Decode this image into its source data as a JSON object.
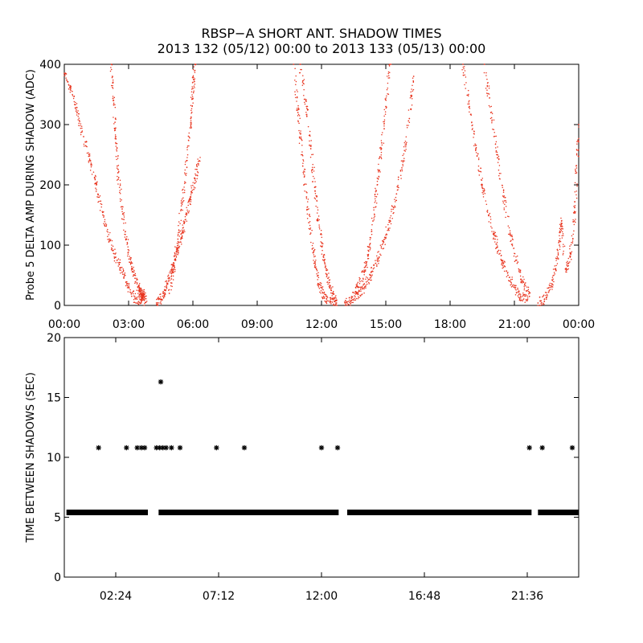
{
  "title_line1": "RBSP−A SHORT ANT. SHADOW TIMES",
  "title_line2": "2013 132 (05/12) 00:00 to 2013 133 (05/13) 00:00",
  "colors": {
    "top_points": "#e8321c",
    "bottom_points": "#000000",
    "axes": "#000000"
  },
  "chart_data": [
    {
      "type": "scatter",
      "name": "probe5-delta-amp",
      "ylabel": "Probe 5 DELTA AMP DURING SHADOW (ADC)",
      "xlabel": "",
      "x_unit": "hours",
      "xlim": [
        0,
        24
      ],
      "ylim": [
        0,
        400
      ],
      "x_ticks": [
        0,
        3,
        6,
        9,
        12,
        15,
        18,
        21,
        24
      ],
      "x_tick_labels": [
        "00:00",
        "03:00",
        "06:00",
        "09:00",
        "12:00",
        "15:00",
        "18:00",
        "21:00",
        "00:00"
      ],
      "y_ticks": [
        0,
        100,
        200,
        300,
        400
      ],
      "y_tick_labels": [
        "0",
        "100",
        "200",
        "300",
        "400"
      ],
      "grid": false,
      "series": [
        {
          "name": "descending-branch",
          "points": [
            [
              0.0,
              385
            ],
            [
              0.3,
              360
            ],
            [
              0.6,
              320
            ],
            [
              0.9,
              280
            ],
            [
              1.2,
              240
            ],
            [
              1.5,
              200
            ],
            [
              1.8,
              150
            ],
            [
              2.1,
              110
            ],
            [
              2.4,
              80
            ],
            [
              2.7,
              55
            ],
            [
              3.0,
              30
            ],
            [
              3.3,
              12
            ],
            [
              3.6,
              8
            ],
            [
              3.7,
              20
            ],
            [
              3.8,
              5
            ]
          ]
        },
        {
          "name": "descending-branch-2",
          "points": [
            [
              2.2,
              400
            ],
            [
              2.3,
              340
            ],
            [
              2.4,
              280
            ],
            [
              2.5,
              220
            ],
            [
              2.7,
              160
            ],
            [
              2.9,
              110
            ],
            [
              3.1,
              70
            ],
            [
              3.3,
              45
            ],
            [
              3.5,
              25
            ],
            [
              3.6,
              20
            ],
            [
              3.7,
              15
            ]
          ]
        },
        {
          "name": "ascending-branch",
          "points": [
            [
              4.3,
              4
            ],
            [
              4.5,
              10
            ],
            [
              4.7,
              25
            ],
            [
              4.9,
              45
            ],
            [
              5.1,
              70
            ],
            [
              5.3,
              95
            ],
            [
              5.5,
              120
            ],
            [
              5.7,
              150
            ],
            [
              5.9,
              180
            ],
            [
              6.1,
              210
            ],
            [
              6.3,
              240
            ]
          ]
        },
        {
          "name": "ascending-branch-2",
          "points": [
            [
              4.9,
              20
            ],
            [
              5.1,
              60
            ],
            [
              5.3,
              110
            ],
            [
              5.5,
              170
            ],
            [
              5.7,
              240
            ],
            [
              5.9,
              310
            ],
            [
              6.0,
              360
            ],
            [
              6.1,
              400
            ]
          ]
        },
        {
          "name": "descending-branch-3",
          "points": [
            [
              10.7,
              400
            ],
            [
              10.9,
              320
            ],
            [
              11.1,
              250
            ],
            [
              11.3,
              180
            ],
            [
              11.5,
              120
            ],
            [
              11.7,
              70
            ],
            [
              11.9,
              35
            ],
            [
              12.1,
              15
            ],
            [
              12.4,
              6
            ],
            [
              12.7,
              4
            ]
          ]
        },
        {
          "name": "descending-branch-4",
          "points": [
            [
              11.0,
              400
            ],
            [
              11.3,
              330
            ],
            [
              11.5,
              260
            ],
            [
              11.7,
              190
            ],
            [
              11.9,
              130
            ],
            [
              12.1,
              80
            ],
            [
              12.3,
              45
            ],
            [
              12.5,
              20
            ],
            [
              12.7,
              8
            ]
          ]
        },
        {
          "name": "ascending-branch-3",
          "points": [
            [
              13.1,
              4
            ],
            [
              13.4,
              8
            ],
            [
              13.7,
              18
            ],
            [
              14.0,
              30
            ],
            [
              14.3,
              50
            ],
            [
              14.6,
              75
            ],
            [
              14.9,
              105
            ],
            [
              15.2,
              140
            ],
            [
              15.5,
              185
            ],
            [
              15.8,
              240
            ],
            [
              16.1,
              310
            ],
            [
              16.3,
              380
            ]
          ]
        },
        {
          "name": "ascending-branch-4",
          "points": [
            [
              13.4,
              12
            ],
            [
              13.7,
              30
            ],
            [
              14.0,
              55
            ],
            [
              14.2,
              90
            ],
            [
              14.4,
              140
            ],
            [
              14.6,
              200
            ],
            [
              14.8,
              260
            ],
            [
              15.0,
              330
            ],
            [
              15.2,
              400
            ]
          ]
        },
        {
          "name": "descending-branch-5",
          "points": [
            [
              18.6,
              400
            ],
            [
              18.9,
              330
            ],
            [
              19.2,
              260
            ],
            [
              19.5,
              200
            ],
            [
              19.8,
              150
            ],
            [
              20.1,
              110
            ],
            [
              20.4,
              75
            ],
            [
              20.7,
              50
            ],
            [
              21.0,
              30
            ],
            [
              21.3,
              15
            ],
            [
              21.6,
              8
            ]
          ]
        },
        {
          "name": "descending-branch-6",
          "points": [
            [
              19.6,
              400
            ],
            [
              19.9,
              320
            ],
            [
              20.2,
              250
            ],
            [
              20.5,
              180
            ],
            [
              20.8,
              120
            ],
            [
              21.1,
              75
            ],
            [
              21.4,
              40
            ],
            [
              21.7,
              15
            ]
          ]
        },
        {
          "name": "ascending-branch-5",
          "points": [
            [
              22.1,
              4
            ],
            [
              22.4,
              10
            ],
            [
              22.7,
              30
            ],
            [
              22.9,
              60
            ],
            [
              23.1,
              100
            ],
            [
              23.2,
              140
            ],
            [
              23.4,
              60
            ],
            [
              23.6,
              80
            ],
            [
              23.8,
              140
            ],
            [
              23.9,
              220
            ],
            [
              24.0,
              300
            ]
          ]
        }
      ]
    },
    {
      "type": "scatter",
      "name": "time-between-shadows",
      "ylabel": "TIME BETWEEN SHADOWS (SEC)",
      "xlabel": "",
      "x_unit": "hours",
      "xlim": [
        0,
        24
      ],
      "ylim": [
        0,
        20
      ],
      "x_ticks": [
        2.4,
        7.2,
        12.0,
        16.8,
        21.6
      ],
      "x_tick_labels": [
        "02:24",
        "07:12",
        "12:00",
        "16:48",
        "21:36"
      ],
      "y_ticks": [
        0,
        5,
        10,
        15,
        20
      ],
      "y_tick_labels": [
        "0",
        "5",
        "10",
        "15",
        "20"
      ],
      "grid": false,
      "baseline_value": 5.4,
      "baseline_ranges": [
        [
          0.1,
          3.9
        ],
        [
          4.4,
          12.8
        ],
        [
          13.2,
          21.8
        ],
        [
          22.1,
          24.0
        ]
      ],
      "outliers": [
        [
          1.6,
          10.8
        ],
        [
          2.9,
          10.8
        ],
        [
          3.4,
          10.8
        ],
        [
          3.6,
          10.8
        ],
        [
          3.75,
          10.8
        ],
        [
          4.3,
          10.8
        ],
        [
          4.45,
          10.8
        ],
        [
          4.6,
          10.8
        ],
        [
          4.75,
          10.8
        ],
        [
          5.0,
          10.8
        ],
        [
          5.4,
          10.8
        ],
        [
          7.1,
          10.8
        ],
        [
          8.4,
          10.8
        ],
        [
          12.0,
          10.8
        ],
        [
          12.75,
          10.8
        ],
        [
          21.7,
          10.8
        ],
        [
          22.3,
          10.8
        ],
        [
          23.7,
          10.8
        ],
        [
          4.5,
          16.3
        ]
      ]
    }
  ]
}
